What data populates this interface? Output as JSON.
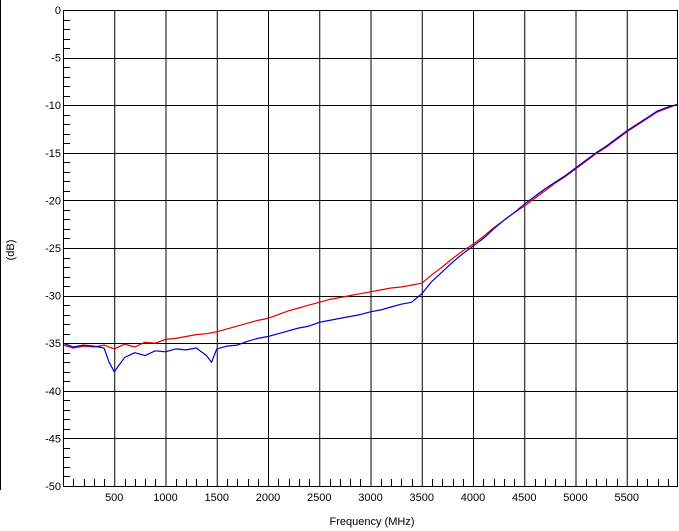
{
  "chart_data": {
    "type": "line",
    "title": "",
    "xlabel": "Frequency (MHz)",
    "ylabel": "(dB)",
    "xlim": [
      0,
      6000
    ],
    "ylim": [
      -50,
      0
    ],
    "xticks": [
      500,
      1000,
      1500,
      2000,
      2500,
      3000,
      3500,
      4000,
      4500,
      5000,
      5500
    ],
    "yticks": [
      0,
      -5,
      -10,
      -15,
      -20,
      -25,
      -30,
      -35,
      -40,
      -45,
      -50
    ],
    "grid": true,
    "legend": "none",
    "series": [
      {
        "color": "#e00000",
        "x": [
          0,
          100,
          200,
          300,
          400,
          500,
          600,
          700,
          800,
          900,
          1000,
          1100,
          1200,
          1300,
          1400,
          1500,
          1600,
          1700,
          1800,
          1900,
          2000,
          2100,
          2200,
          2300,
          2400,
          2500,
          2600,
          2700,
          2800,
          2900,
          3000,
          3100,
          3200,
          3300,
          3400,
          3500,
          3600,
          3700,
          3800,
          3900,
          4000,
          4100,
          4200,
          4300,
          4400,
          4500,
          4600,
          4700,
          4800,
          4900,
          5000,
          5100,
          5200,
          5300,
          5400,
          5500,
          5600,
          5700,
          5800,
          5900,
          6000
        ],
        "y": [
          -35.2,
          -35.5,
          -35.3,
          -35.4,
          -35.2,
          -35.6,
          -35.1,
          -35.4,
          -34.9,
          -35.0,
          -34.6,
          -34.5,
          -34.3,
          -34.1,
          -34.0,
          -33.8,
          -33.5,
          -33.2,
          -32.9,
          -32.6,
          -32.4,
          -32.0,
          -31.6,
          -31.3,
          -31.0,
          -30.7,
          -30.4,
          -30.2,
          -30.0,
          -29.8,
          -29.6,
          -29.4,
          -29.2,
          -29.1,
          -28.9,
          -28.7,
          -27.8,
          -27.0,
          -26.1,
          -25.3,
          -24.6,
          -23.8,
          -22.9,
          -22.1,
          -21.3,
          -20.6,
          -19.8,
          -19.0,
          -18.2,
          -17.5,
          -16.7,
          -15.9,
          -15.1,
          -14.4,
          -13.6,
          -12.8,
          -12.1,
          -11.4,
          -10.7,
          -10.3,
          -9.9
        ]
      },
      {
        "color": "#0000d0",
        "x": [
          0,
          100,
          200,
          300,
          400,
          450,
          500,
          600,
          700,
          800,
          900,
          1000,
          1100,
          1200,
          1300,
          1400,
          1450,
          1500,
          1600,
          1700,
          1800,
          1900,
          2000,
          2100,
          2200,
          2300,
          2400,
          2500,
          2600,
          2700,
          2800,
          2900,
          3000,
          3100,
          3200,
          3300,
          3400,
          3500,
          3600,
          3700,
          3800,
          3900,
          4000,
          4100,
          4200,
          4300,
          4400,
          4500,
          4600,
          4700,
          4800,
          4900,
          5000,
          5100,
          5200,
          5300,
          5400,
          5500,
          5600,
          5700,
          5800,
          5900,
          6000
        ],
        "y": [
          -35.0,
          -35.4,
          -35.2,
          -35.3,
          -35.5,
          -37.0,
          -38.0,
          -36.5,
          -36.0,
          -36.3,
          -35.8,
          -35.9,
          -35.6,
          -35.7,
          -35.5,
          -36.3,
          -37.0,
          -35.6,
          -35.3,
          -35.2,
          -34.8,
          -34.5,
          -34.3,
          -34.0,
          -33.7,
          -33.4,
          -33.2,
          -32.8,
          -32.6,
          -32.4,
          -32.2,
          -32.0,
          -31.7,
          -31.5,
          -31.2,
          -30.9,
          -30.7,
          -29.8,
          -28.5,
          -27.5,
          -26.5,
          -25.6,
          -24.8,
          -24.0,
          -23.0,
          -22.1,
          -21.3,
          -20.4,
          -19.6,
          -18.8,
          -18.1,
          -17.4,
          -16.6,
          -15.8,
          -15.0,
          -14.3,
          -13.5,
          -12.7,
          -12.0,
          -11.3,
          -10.6,
          -10.2,
          -9.9
        ]
      }
    ]
  }
}
